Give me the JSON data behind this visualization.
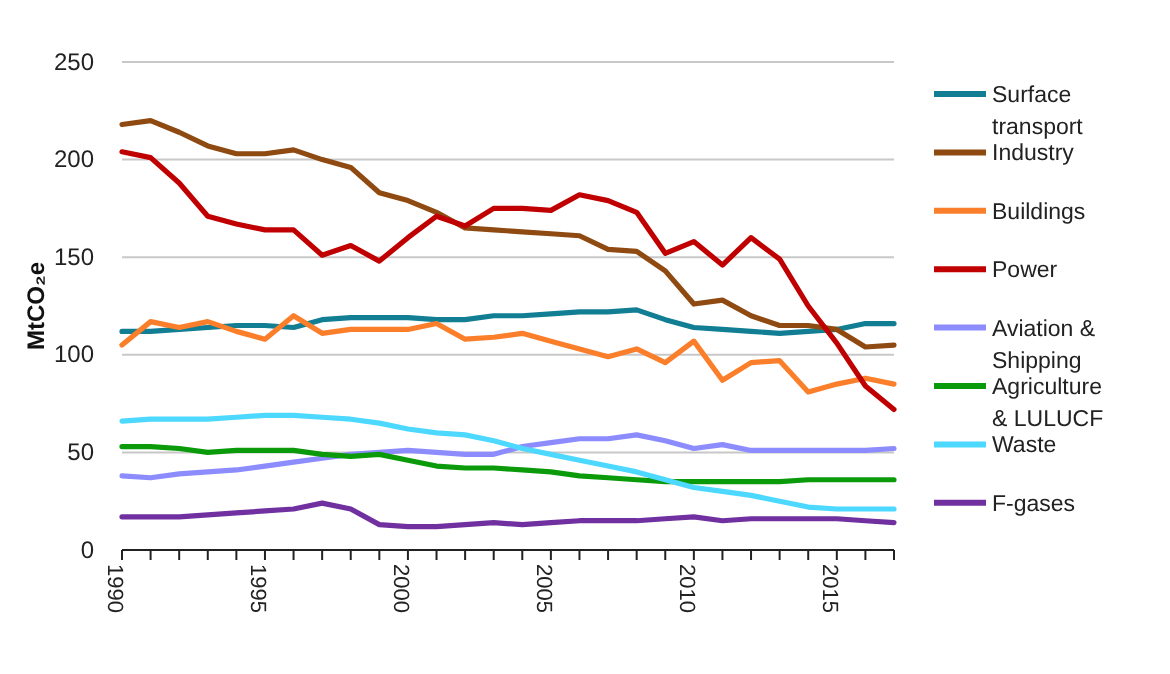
{
  "chart_data": {
    "type": "line",
    "ylabel": "MtCO₂e",
    "x": [
      1990,
      1991,
      1992,
      1993,
      1994,
      1995,
      1996,
      1997,
      1998,
      1999,
      2000,
      2001,
      2002,
      2003,
      2004,
      2005,
      2006,
      2007,
      2008,
      2009,
      2010,
      2011,
      2012,
      2013,
      2014,
      2015,
      2016,
      2017
    ],
    "xlim": [
      1990,
      2017
    ],
    "xticks": [
      {
        "value": 1990,
        "label": "1990"
      },
      {
        "value": 1991,
        "label": null
      },
      {
        "value": 1992,
        "label": null
      },
      {
        "value": 1993,
        "label": null
      },
      {
        "value": 1994,
        "label": null
      },
      {
        "value": 1995,
        "label": "1995"
      },
      {
        "value": 1996,
        "label": null
      },
      {
        "value": 1997,
        "label": null
      },
      {
        "value": 1998,
        "label": null
      },
      {
        "value": 1999,
        "label": null
      },
      {
        "value": 2000,
        "label": "2000"
      },
      {
        "value": 2001,
        "label": null
      },
      {
        "value": 2002,
        "label": null
      },
      {
        "value": 2003,
        "label": null
      },
      {
        "value": 2004,
        "label": null
      },
      {
        "value": 2005,
        "label": "2005"
      },
      {
        "value": 2006,
        "label": null
      },
      {
        "value": 2007,
        "label": null
      },
      {
        "value": 2008,
        "label": null
      },
      {
        "value": 2009,
        "label": null
      },
      {
        "value": 2010,
        "label": "2010"
      },
      {
        "value": 2011,
        "label": null
      },
      {
        "value": 2012,
        "label": null
      },
      {
        "value": 2013,
        "label": null
      },
      {
        "value": 2014,
        "label": null
      },
      {
        "value": 2015,
        "label": "2015"
      },
      {
        "value": 2016,
        "label": null
      },
      {
        "value": 2017,
        "label": null
      }
    ],
    "ylim": [
      0,
      250
    ],
    "yticks": [
      0,
      50,
      100,
      150,
      200,
      250
    ],
    "grid": "y",
    "legend": "right",
    "marker": "none",
    "line_style": "solid",
    "series": [
      {
        "name": "Surface transport",
        "color": "#117e94",
        "values": [
          112,
          112,
          113,
          114,
          115,
          115,
          114,
          118,
          119,
          119,
          119,
          118,
          118,
          120,
          120,
          121,
          122,
          122,
          123,
          118,
          114,
          113,
          112,
          111,
          112,
          113,
          116,
          116
        ]
      },
      {
        "name": "Industry",
        "color": "#8f4a12",
        "values": [
          218,
          220,
          214,
          207,
          203,
          203,
          205,
          200,
          196,
          183,
          179,
          173,
          165,
          164,
          163,
          162,
          161,
          154,
          153,
          143,
          126,
          128,
          120,
          115,
          115,
          113,
          104,
          105
        ]
      },
      {
        "name": "Buildings",
        "color": "#fb7f2b",
        "values": [
          105,
          117,
          114,
          117,
          112,
          108,
          120,
          111,
          113,
          113,
          113,
          116,
          108,
          109,
          111,
          107,
          103,
          99,
          103,
          96,
          107,
          87,
          96,
          97,
          81,
          85,
          88,
          85
        ]
      },
      {
        "name": "Power",
        "color": "#c00000",
        "values": [
          204,
          201,
          188,
          171,
          167,
          164,
          164,
          151,
          156,
          148,
          160,
          171,
          166,
          175,
          175,
          174,
          182,
          179,
          173,
          152,
          158,
          146,
          160,
          149,
          125,
          106,
          84,
          72
        ]
      },
      {
        "name": "Aviation & Shipping",
        "color": "#8c8cff",
        "values": [
          38,
          37,
          39,
          40,
          41,
          43,
          45,
          47,
          49,
          50,
          51,
          50,
          49,
          49,
          53,
          55,
          57,
          57,
          59,
          56,
          52,
          54,
          51,
          51,
          51,
          51,
          51,
          52
        ]
      },
      {
        "name": "Agriculture & LULUCF",
        "color": "#0a9a0a",
        "values": [
          53,
          53,
          52,
          50,
          51,
          51,
          51,
          49,
          48,
          49,
          46,
          43,
          42,
          42,
          41,
          40,
          38,
          37,
          36,
          35,
          35,
          35,
          35,
          35,
          36,
          36,
          36,
          36
        ]
      },
      {
        "name": "Waste",
        "color": "#4cd8ff",
        "values": [
          66,
          67,
          67,
          67,
          68,
          69,
          69,
          68,
          67,
          65,
          62,
          60,
          59,
          56,
          52,
          49,
          46,
          43,
          40,
          36,
          32,
          30,
          28,
          25,
          22,
          21,
          21,
          21
        ]
      },
      {
        "name": "F-gases",
        "color": "#7030a0",
        "values": [
          17,
          17,
          17,
          18,
          19,
          20,
          21,
          24,
          21,
          13,
          12,
          12,
          13,
          14,
          13,
          14,
          15,
          15,
          15,
          16,
          17,
          15,
          16,
          16,
          16,
          16,
          15,
          14
        ]
      }
    ]
  }
}
